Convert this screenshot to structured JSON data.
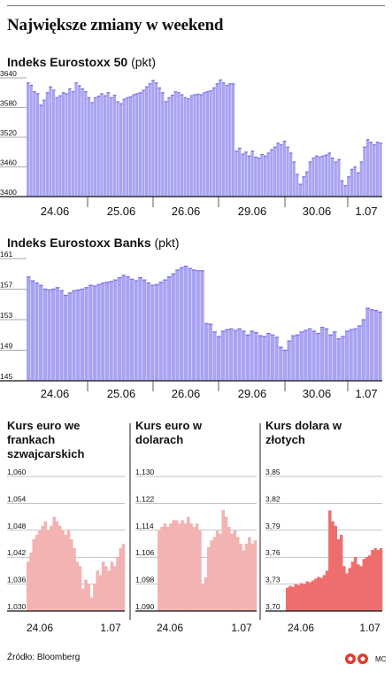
{
  "title": "Największe zmiany w weekend",
  "source": "Źródło: Bloomberg",
  "credit": "MC",
  "colors": {
    "blue_fill": "#a9a3f2",
    "blue_line": "#7a6fe0",
    "pink_fill": "#f3b3b3",
    "red_fill": "#ee6e6e",
    "axis": "#111111"
  },
  "chart_data": [
    {
      "type": "bar",
      "title": "Indeks Eurostoxx 50",
      "unit": "(pkt)",
      "ylim": [
        3400,
        3640
      ],
      "yticks": [
        3400,
        3460,
        3520,
        3580,
        3640
      ],
      "xticks": [
        "24.06",
        "25.06",
        "26.06",
        "29.06",
        "30.06",
        "1.07"
      ],
      "values": [
        3630,
        3625,
        3612,
        3608,
        3585,
        3595,
        3610,
        3622,
        3615,
        3600,
        3604,
        3610,
        3608,
        3618,
        3612,
        3630,
        3624,
        3618,
        3612,
        3600,
        3590,
        3600,
        3603,
        3608,
        3604,
        3610,
        3600,
        3605,
        3592,
        3588,
        3597,
        3600,
        3602,
        3606,
        3608,
        3610,
        3615,
        3622,
        3628,
        3635,
        3630,
        3620,
        3610,
        3592,
        3600,
        3605,
        3612,
        3610,
        3606,
        3600,
        3598,
        3604,
        3606,
        3607,
        3606,
        3610,
        3612,
        3614,
        3620,
        3628,
        3636,
        3630,
        3625,
        3628,
        3628,
        3492,
        3498,
        3486,
        3490,
        3482,
        3492,
        3480,
        3478,
        3485,
        3482,
        3488,
        3495,
        3500,
        3508,
        3505,
        3512,
        3500,
        3488,
        3470,
        3445,
        3425,
        3440,
        3450,
        3470,
        3478,
        3482,
        3480,
        3482,
        3484,
        3488,
        3478,
        3470,
        3475,
        3432,
        3422,
        3440,
        3455,
        3460,
        3448,
        3470,
        3500,
        3515,
        3510,
        3505,
        3510,
        3508
      ]
    },
    {
      "type": "bar",
      "title": "Indeks Eurostoxx Banks",
      "unit": "(pkt)",
      "ylim": [
        145,
        161
      ],
      "yticks": [
        145,
        149,
        153,
        157,
        161
      ],
      "xticks": [
        "24.06",
        "25.06",
        "26.06",
        "29.06",
        "30.06",
        "1.07"
      ],
      "values": [
        158.6,
        158.1,
        157.8,
        157.5,
        157.0,
        156.9,
        157.0,
        157.2,
        156.8,
        156.2,
        156.5,
        156.8,
        156.9,
        157.0,
        157.2,
        157.5,
        157.4,
        157.6,
        157.8,
        157.9,
        158.0,
        158.2,
        158.5,
        158.8,
        158.6,
        158.3,
        158.1,
        158.5,
        158.2,
        157.8,
        157.5,
        157.6,
        157.9,
        158.2,
        158.6,
        159.0,
        159.5,
        159.8,
        160.0,
        159.7,
        159.5,
        159.4,
        159.4,
        152.5,
        152.4,
        151.4,
        150.8,
        151.5,
        151.7,
        151.8,
        151.6,
        151.8,
        151.5,
        151.0,
        151.5,
        151.3,
        150.9,
        150.8,
        151.2,
        151.0,
        150.7,
        149.4,
        149.0,
        150.2,
        150.9,
        151.0,
        151.4,
        151.6,
        151.8,
        151.5,
        151.2,
        152.0,
        151.8,
        151.0,
        151.4,
        150.5,
        150.8,
        151.5,
        151.7,
        151.8,
        152.2,
        153.0,
        154.5,
        154.3,
        154.2,
        154.0
      ]
    },
    {
      "type": "area",
      "title": "Kurs euro we frankach szwajcarskich",
      "ylim": [
        1.03,
        1.06
      ],
      "yticks": [
        "1,030",
        "1,036",
        "1,042",
        "1,048",
        "1,054",
        "1,060"
      ],
      "xticks": [
        "24.06",
        "1.07"
      ],
      "values": [
        1.041,
        1.043,
        1.046,
        1.047,
        1.048,
        1.049,
        1.05,
        1.048,
        1.049,
        1.051,
        1.05,
        1.049,
        1.048,
        1.047,
        1.048,
        1.046,
        1.044,
        1.041,
        1.04,
        1.035,
        1.037,
        1.036,
        1.033,
        1.036,
        1.039,
        1.038,
        1.041,
        1.04,
        1.039,
        1.041,
        1.04,
        1.042,
        1.044,
        1.045
      ]
    },
    {
      "type": "area",
      "title": "Kurs euro w dolarach",
      "ylim": [
        1.09,
        1.13
      ],
      "yticks": [
        "1,090",
        "1,098",
        "1,106",
        "1,114",
        "1,122",
        "1,130"
      ],
      "xticks": [
        "24.06",
        "1.07"
      ],
      "values": [
        1.114,
        1.115,
        1.116,
        1.115,
        1.116,
        1.117,
        1.117,
        1.116,
        1.117,
        1.116,
        1.118,
        1.116,
        1.115,
        1.116,
        1.114,
        1.098,
        1.1,
        1.109,
        1.111,
        1.112,
        1.114,
        1.113,
        1.12,
        1.118,
        1.115,
        1.113,
        1.114,
        1.112,
        1.11,
        1.108,
        1.11,
        1.112,
        1.11,
        1.111
      ]
    },
    {
      "type": "area",
      "title": "Kurs dolara w złotych",
      "ylim": [
        3.7,
        3.85
      ],
      "yticks": [
        "3,70",
        "3,73",
        "3,76",
        "3,79",
        "3,82",
        "3,85"
      ],
      "xticks": [
        "24.06",
        "1.07"
      ],
      "values": [
        3.726,
        3.728,
        3.727,
        3.73,
        3.729,
        3.731,
        3.73,
        3.733,
        3.732,
        3.734,
        3.736,
        3.738,
        3.737,
        3.74,
        3.745,
        3.812,
        3.8,
        3.795,
        3.78,
        3.785,
        3.75,
        3.742,
        3.748,
        3.755,
        3.76,
        3.752,
        3.75,
        3.758,
        3.76,
        3.762,
        3.768,
        3.77,
        3.768,
        3.77
      ]
    }
  ]
}
